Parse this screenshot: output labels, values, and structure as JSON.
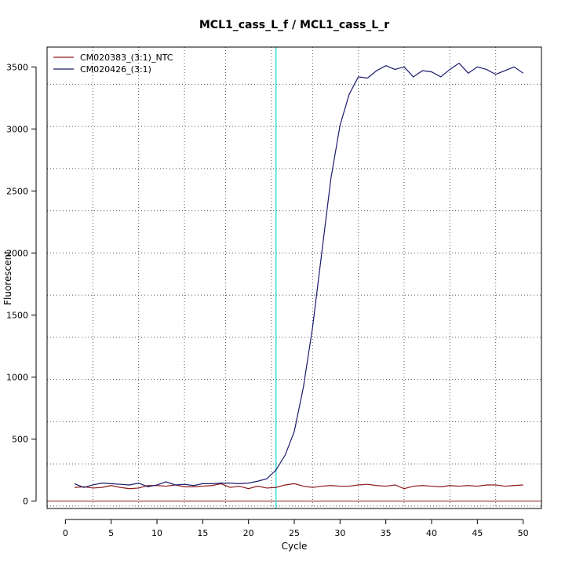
{
  "chart_data": {
    "type": "line",
    "title": "MCL1_cass_L_f / MCL1_cass_L_r",
    "xlabel": "Cycle",
    "ylabel": "Fluorescent",
    "xlim": [
      -2,
      52
    ],
    "ylim": [
      -60,
      3660
    ],
    "xticks": [
      0,
      5,
      10,
      15,
      20,
      25,
      30,
      35,
      40,
      45,
      50
    ],
    "yticks": [
      0,
      500,
      1000,
      1500,
      2000,
      2500,
      3000,
      3500
    ],
    "x_gridlines": [
      3,
      8,
      13,
      17.5,
      22.5,
      27,
      32,
      37,
      42,
      47
    ],
    "y_gridlines": [
      -40,
      300,
      640,
      980,
      1320,
      1660,
      2000,
      2340,
      2680,
      3020,
      3360
    ],
    "grid": true,
    "legend_position": "top-left",
    "threshold_line": {
      "x": 23,
      "color": "#33dddd"
    },
    "baseline": {
      "y": 0,
      "color": "#8b1a1a"
    },
    "x": [
      1,
      2,
      3,
      4,
      5,
      6,
      7,
      8,
      9,
      10,
      11,
      12,
      13,
      14,
      15,
      16,
      17,
      18,
      19,
      20,
      21,
      22,
      23,
      24,
      25,
      26,
      27,
      28,
      29,
      30,
      31,
      32,
      33,
      34,
      35,
      36,
      37,
      38,
      39,
      40,
      41,
      42,
      43,
      44,
      45,
      46,
      47,
      48,
      49,
      50
    ],
    "series": [
      {
        "name": "CM020383_(3:1)_NTC",
        "color": "#8b1a1a",
        "values": [
          110,
          115,
          105,
          110,
          125,
          110,
          100,
          105,
          125,
          125,
          120,
          130,
          115,
          115,
          120,
          125,
          140,
          110,
          120,
          100,
          120,
          105,
          110,
          130,
          140,
          120,
          110,
          120,
          125,
          120,
          120,
          130,
          135,
          125,
          120,
          130,
          100,
          120,
          125,
          120,
          115,
          125,
          120,
          125,
          120,
          130,
          130,
          120,
          125,
          130
        ]
      },
      {
        "name": "CM020426_(3:1)",
        "color": "#1a1a6e",
        "values": [
          140,
          110,
          130,
          145,
          140,
          135,
          130,
          145,
          115,
          130,
          155,
          130,
          135,
          125,
          140,
          140,
          145,
          145,
          140,
          145,
          160,
          180,
          250,
          370,
          560,
          920,
          1400,
          2000,
          2600,
          3030,
          3280,
          3420,
          3410,
          3470,
          3510,
          3480,
          3500,
          3420,
          3470,
          3460,
          3420,
          3480,
          3530,
          3450,
          3500,
          3480,
          3440,
          3470,
          3500,
          3450
        ]
      }
    ]
  }
}
